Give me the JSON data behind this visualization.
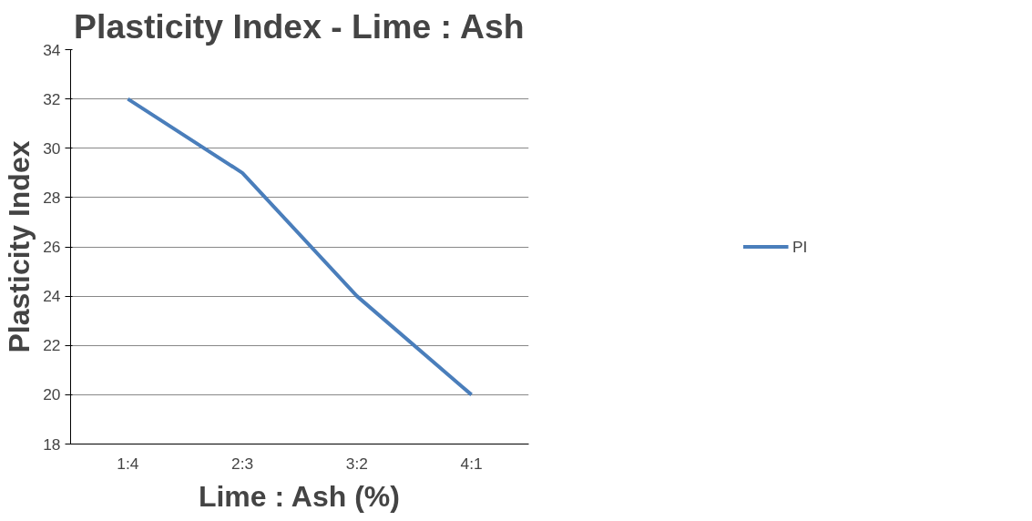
{
  "chart_data": {
    "type": "line",
    "title": "Plasticity Index - Lime : Ash",
    "xlabel": "Lime : Ash (%)",
    "ylabel": "Plasticity Index",
    "categories": [
      "1:4",
      "2:3",
      "3:2",
      "4:1"
    ],
    "series": [
      {
        "name": "PI",
        "color": "#4a7ebb",
        "values": [
          32,
          29,
          24,
          20
        ]
      }
    ],
    "ylim": [
      18,
      34
    ],
    "yticks": [
      18,
      20,
      22,
      24,
      26,
      28,
      30,
      32,
      34
    ],
    "grid": "y",
    "legend": "right",
    "marker": "none",
    "line_style": "solid"
  }
}
